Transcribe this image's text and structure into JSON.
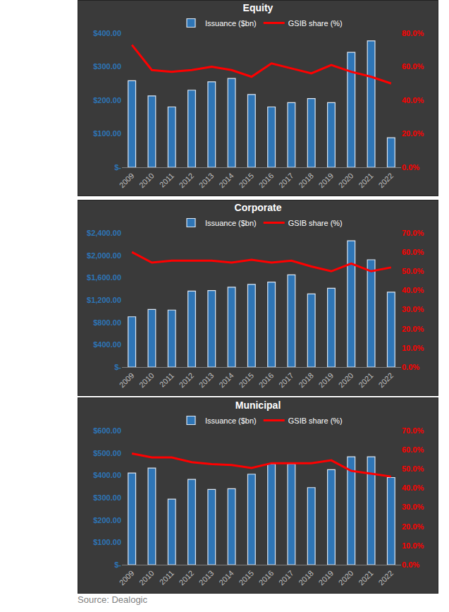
{
  "chart_data": [
    {
      "type": "bar",
      "title": "Equity",
      "categories": [
        "2009",
        "2010",
        "2011",
        "2012",
        "2013",
        "2014",
        "2015",
        "2016",
        "2017",
        "2018",
        "2019",
        "2020",
        "2021",
        "2022"
      ],
      "series": [
        {
          "name": "Issuance ($bn)",
          "type": "bar",
          "color": "#2e75b6",
          "values": [
            258,
            213,
            180,
            230,
            255,
            265,
            217,
            180,
            193,
            205,
            193,
            343,
            377,
            88
          ]
        },
        {
          "name": "GSIB share (%)",
          "type": "line",
          "axis": "y2",
          "color": "#ff0000",
          "values": [
            73,
            58,
            57,
            58,
            60,
            58,
            54,
            62,
            59,
            56,
            61,
            57,
            54,
            50
          ]
        }
      ],
      "ylim": [
        0,
        400
      ],
      "yticks": [
        {
          "value": 0,
          "label": "$-"
        },
        {
          "value": 100,
          "label": "$100.00"
        },
        {
          "value": 200,
          "label": "$200.00"
        },
        {
          "value": 300,
          "label": "$300.00"
        },
        {
          "value": 400,
          "label": "$400.00"
        }
      ],
      "y2lim": [
        0,
        80
      ],
      "y2ticks": [
        {
          "value": 0,
          "label": "0.0%"
        },
        {
          "value": 20,
          "label": "20.0%"
        },
        {
          "value": 40,
          "label": "40.0%"
        },
        {
          "value": 60,
          "label": "60.0%"
        },
        {
          "value": 80,
          "label": "80.0%"
        }
      ],
      "grid": false,
      "legend": "top"
    },
    {
      "type": "bar",
      "title": "Corporate",
      "categories": [
        "2009",
        "2010",
        "2011",
        "2012",
        "2013",
        "2014",
        "2015",
        "2016",
        "2017",
        "2018",
        "2019",
        "2020",
        "2021",
        "2022"
      ],
      "series": [
        {
          "name": "Issuance ($bn)",
          "type": "bar",
          "color": "#2e75b6",
          "values": [
            900,
            1030,
            1020,
            1360,
            1370,
            1430,
            1480,
            1520,
            1650,
            1310,
            1410,
            2260,
            1920,
            1340
          ]
        },
        {
          "name": "GSIB share (%)",
          "type": "line",
          "axis": "y2",
          "color": "#ff0000",
          "values": [
            60,
            54.5,
            55.5,
            55.5,
            55.5,
            54.5,
            56,
            54.5,
            55.5,
            52.5,
            50,
            54,
            50,
            52
          ]
        }
      ],
      "ylim": [
        0,
        2400
      ],
      "yticks": [
        {
          "value": 0,
          "label": "$-"
        },
        {
          "value": 400,
          "label": "$400.00"
        },
        {
          "value": 800,
          "label": "$800.00"
        },
        {
          "value": 1200,
          "label": "$1,200.00"
        },
        {
          "value": 1600,
          "label": "$1,600.00"
        },
        {
          "value": 2000,
          "label": "$2,000.00"
        },
        {
          "value": 2400,
          "label": "$2,400.00"
        }
      ],
      "y2lim": [
        0,
        70
      ],
      "y2ticks": [
        {
          "value": 0,
          "label": "0.0%"
        },
        {
          "value": 10,
          "label": "10.0%"
        },
        {
          "value": 20,
          "label": "20.0%"
        },
        {
          "value": 30,
          "label": "30.0%"
        },
        {
          "value": 40,
          "label": "40.0%"
        },
        {
          "value": 50,
          "label": "50.0%"
        },
        {
          "value": 60,
          "label": "60.0%"
        },
        {
          "value": 70,
          "label": "70.0%"
        }
      ],
      "grid": false,
      "legend": "top"
    },
    {
      "type": "bar",
      "title": "Municipal",
      "categories": [
        "2009",
        "2010",
        "2011",
        "2012",
        "2013",
        "2014",
        "2015",
        "2016",
        "2017",
        "2018",
        "2019",
        "2020",
        "2021",
        "2022"
      ],
      "series": [
        {
          "name": "Issuance ($bn)",
          "type": "bar",
          "color": "#2e75b6",
          "values": [
            410,
            432,
            293,
            382,
            337,
            340,
            405,
            450,
            450,
            345,
            425,
            483,
            483,
            390
          ]
        },
        {
          "name": "GSIB share (%)",
          "type": "line",
          "axis": "y2",
          "color": "#ff0000",
          "values": [
            58,
            56,
            56,
            53.5,
            52.5,
            52,
            50.5,
            53,
            53,
            53,
            54.5,
            49,
            47.5,
            46
          ]
        }
      ],
      "ylim": [
        0,
        600
      ],
      "yticks": [
        {
          "value": 0,
          "label": "$-"
        },
        {
          "value": 100,
          "label": "$100.00"
        },
        {
          "value": 200,
          "label": "$200.00"
        },
        {
          "value": 300,
          "label": "$300.00"
        },
        {
          "value": 400,
          "label": "$400.00"
        },
        {
          "value": 500,
          "label": "$500.00"
        },
        {
          "value": 600,
          "label": "$600.00"
        }
      ],
      "y2lim": [
        0,
        70
      ],
      "y2ticks": [
        {
          "value": 0,
          "label": "0.0%"
        },
        {
          "value": 10,
          "label": "10.0%"
        },
        {
          "value": 20,
          "label": "20.0%"
        },
        {
          "value": 30,
          "label": "30.0%"
        },
        {
          "value": 40,
          "label": "40.0%"
        },
        {
          "value": 50,
          "label": "50.0%"
        },
        {
          "value": 60,
          "label": "60.0%"
        },
        {
          "value": 70,
          "label": "70.0%"
        }
      ],
      "grid": false,
      "legend": "top"
    }
  ],
  "source": "Source: Dealogic"
}
